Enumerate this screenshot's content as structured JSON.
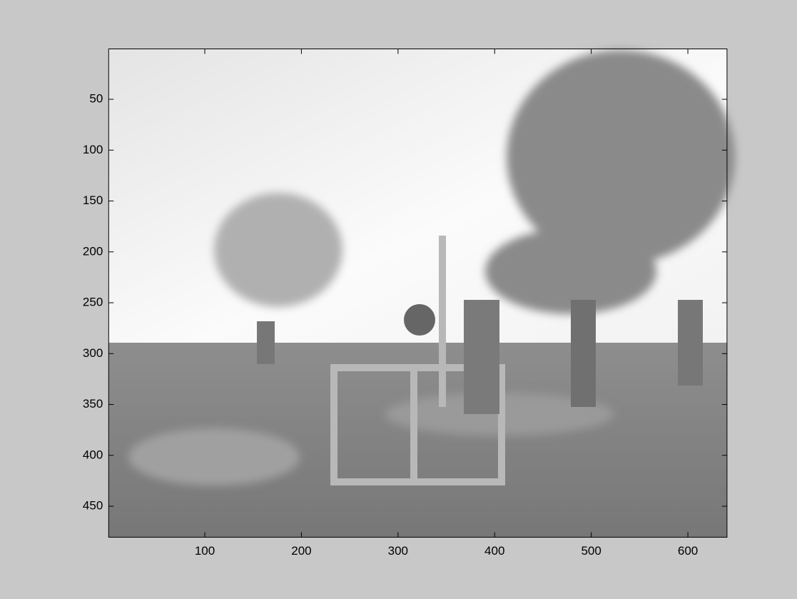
{
  "chart_data": {
    "type": "image",
    "xlim": [
      0.5,
      640.5
    ],
    "ylim": [
      0.5,
      480.5
    ],
    "ydir": "reverse",
    "xticks": [
      100,
      200,
      300,
      400,
      500,
      600
    ],
    "yticks": [
      50,
      100,
      150,
      200,
      250,
      300,
      350,
      400,
      450
    ]
  }
}
